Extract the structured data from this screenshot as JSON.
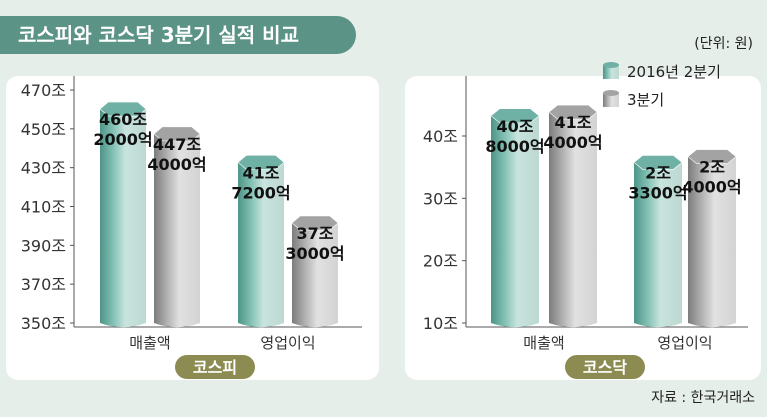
{
  "header": {
    "title": "코스피와 코스닥 3분기 실적 비교",
    "unit": "(단위: 원)",
    "source": "자료 : 한국거래소"
  },
  "legend": {
    "items": [
      {
        "label": "2016년 2분기",
        "color": "#6fb1a5"
      },
      {
        "label": "3분기",
        "color": "#9d9d9d"
      }
    ]
  },
  "colors": {
    "series_2q": "#6fb1a5",
    "series_3q": "#a3a3a3",
    "panel_label_bg": "#8c8b51",
    "header_bg": "#5b9486",
    "background": "#e6eee9"
  },
  "chart_data": [
    {
      "type": "bar",
      "panel_label": "코스피",
      "categories": [
        "매출액",
        "영업이익"
      ],
      "series": [
        {
          "name": "2016년 2분기",
          "values": [
            460.2,
            41.72
          ],
          "labels": [
            "460조 2000억",
            "41조 7200억"
          ]
        },
        {
          "name": "3분기",
          "values": [
            447.4,
            37.3
          ],
          "labels": [
            "447조 4000억",
            "37조 3000억"
          ]
        }
      ],
      "note": "매출액 and 영업이익 bars share one plot without a common scale",
      "y_ticks": [
        "470조",
        "450조",
        "430조",
        "410조",
        "390조",
        "370조",
        "350조"
      ]
    },
    {
      "type": "bar",
      "panel_label": "코스닥",
      "categories": [
        "매출액",
        "영업이익"
      ],
      "series": [
        {
          "name": "2016년 2분기",
          "values": [
            40.8,
            2.33
          ],
          "labels": [
            "40조 8000억",
            "2조 3300억"
          ]
        },
        {
          "name": "3분기",
          "values": [
            41.4,
            2.4
          ],
          "labels": [
            "41조 4000억",
            "2조 4000억"
          ]
        }
      ],
      "note": "매출액 and 영업이익 bars share one plot without a common scale",
      "y_ticks": [
        "40조",
        "30조",
        "20조",
        "10조"
      ]
    }
  ]
}
